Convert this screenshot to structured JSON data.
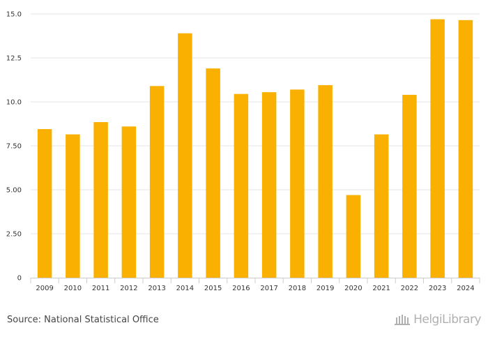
{
  "chart_data": {
    "type": "bar",
    "categories": [
      "2009",
      "2010",
      "2011",
      "2012",
      "2013",
      "2014",
      "2015",
      "2016",
      "2017",
      "2018",
      "2019",
      "2020",
      "2021",
      "2022",
      "2023",
      "2024"
    ],
    "values": [
      8.45,
      8.15,
      8.85,
      8.6,
      10.9,
      13.9,
      11.9,
      10.45,
      10.55,
      10.7,
      10.95,
      4.7,
      8.15,
      10.4,
      14.7,
      14.65
    ],
    "yticks": [
      "0",
      "2.50",
      "5.00",
      "7.50",
      "10.0",
      "12.5",
      "15.0"
    ],
    "ylim": [
      0,
      15
    ],
    "title": "",
    "xlabel": "",
    "ylabel": "",
    "grid": true,
    "bar_color": "#f9b000"
  },
  "footer": {
    "source": "Source: National Statistical Office",
    "logo_text": "HelgiLibrary"
  },
  "colors": {
    "grid": "#e6e6e6",
    "axis": "#cccccc",
    "logo": "#b0b0b0"
  }
}
